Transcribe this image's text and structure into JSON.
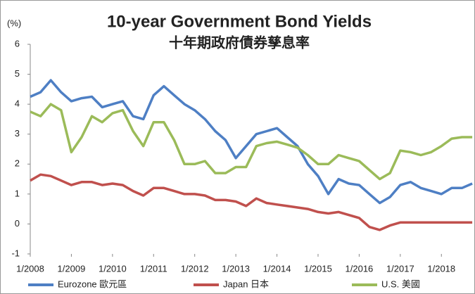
{
  "chart_data": {
    "type": "line",
    "title": "10-year Government Bond Yields",
    "subtitle": "十年期政府債券孳息率",
    "y_label": "(%)",
    "x": [
      2008,
      2008.25,
      2008.5,
      2008.75,
      2009,
      2009.25,
      2009.5,
      2009.75,
      2010,
      2010.25,
      2010.5,
      2010.75,
      2011,
      2011.25,
      2011.5,
      2011.75,
      2012,
      2012.25,
      2012.5,
      2012.75,
      2013,
      2013.25,
      2013.5,
      2013.75,
      2014,
      2014.25,
      2014.5,
      2014.75,
      2015,
      2015.25,
      2015.5,
      2015.75,
      2016,
      2016.25,
      2016.5,
      2016.75,
      2017,
      2017.25,
      2017.5,
      2017.75,
      2018,
      2018.25,
      2018.5,
      2018.75
    ],
    "series": [
      {
        "name": "Eurozone 歐元區",
        "color": "#4e7fc4",
        "values": [
          4.25,
          4.4,
          4.8,
          4.4,
          4.1,
          4.2,
          4.25,
          3.9,
          4.0,
          4.1,
          3.6,
          3.5,
          4.3,
          4.6,
          4.3,
          4.0,
          3.8,
          3.5,
          3.1,
          2.8,
          2.2,
          2.6,
          3.0,
          3.1,
          3.2,
          2.9,
          2.6,
          2.0,
          1.6,
          1.0,
          1.5,
          1.35,
          1.3,
          1.0,
          0.7,
          0.9,
          1.3,
          1.4,
          1.2,
          1.1,
          1.0,
          1.2,
          1.2,
          1.35
        ]
      },
      {
        "name": "Japan 日本",
        "color": "#c0504d",
        "values": [
          1.45,
          1.65,
          1.6,
          1.45,
          1.3,
          1.4,
          1.4,
          1.3,
          1.35,
          1.3,
          1.1,
          0.95,
          1.2,
          1.2,
          1.1,
          1.0,
          1.0,
          0.95,
          0.8,
          0.8,
          0.75,
          0.6,
          0.85,
          0.7,
          0.65,
          0.6,
          0.55,
          0.5,
          0.4,
          0.35,
          0.4,
          0.3,
          0.2,
          -0.1,
          -0.2,
          -0.05,
          0.05,
          0.05,
          0.05,
          0.05,
          0.05,
          0.05,
          0.05,
          0.05
        ]
      },
      {
        "name": "U.S. 美國",
        "color": "#9bbb59",
        "values": [
          3.75,
          3.6,
          4.0,
          3.8,
          2.4,
          2.9,
          3.6,
          3.4,
          3.7,
          3.8,
          3.1,
          2.6,
          3.4,
          3.4,
          2.8,
          2.0,
          2.0,
          2.1,
          1.7,
          1.7,
          1.9,
          1.9,
          2.6,
          2.7,
          2.75,
          2.65,
          2.55,
          2.3,
          2.0,
          2.0,
          2.3,
          2.2,
          2.1,
          1.8,
          1.5,
          1.7,
          2.45,
          2.4,
          2.3,
          2.4,
          2.6,
          2.85,
          2.9,
          2.9
        ]
      }
    ],
    "xlim": [
      2008,
      2018.8
    ],
    "xticks": [
      {
        "value": 2008,
        "label": "1/2008"
      },
      {
        "value": 2009,
        "label": "1/2009"
      },
      {
        "value": 2010,
        "label": "1/2010"
      },
      {
        "value": 2011,
        "label": "1/2011"
      },
      {
        "value": 2012,
        "label": "1/2012"
      },
      {
        "value": 2013,
        "label": "1/2013"
      },
      {
        "value": 2014,
        "label": "1/2014"
      },
      {
        "value": 2015,
        "label": "1/2015"
      },
      {
        "value": 2016,
        "label": "1/2016"
      },
      {
        "value": 2017,
        "label": "1/2017"
      },
      {
        "value": 2018,
        "label": "1/2018"
      }
    ],
    "ylim": [
      -1,
      6
    ],
    "yticks": [
      -1,
      0,
      1,
      2,
      3,
      4,
      5,
      6
    ],
    "grid": false,
    "legend": "bottom"
  }
}
